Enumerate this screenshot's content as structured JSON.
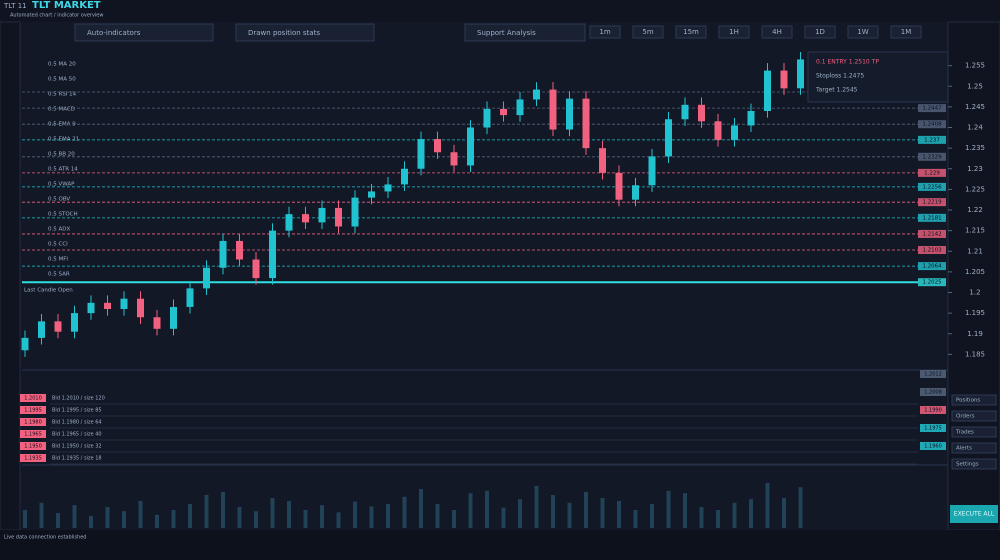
{
  "header": {
    "code": "TLT 11",
    "title": "TLT MARKET",
    "subtitle": "Automated chart / indicator overview",
    "fields": [
      "Auto-indicators",
      "Drawn position stats",
      "Support Analysis"
    ],
    "timeframes": [
      "1m",
      "5m",
      "15m",
      "1H",
      "4H",
      "1D",
      "1W",
      "1M"
    ]
  },
  "sidebar": {
    "labels": [
      "0.5 MA 20",
      "0.5 MA 50",
      "0.5 RSI 14",
      "0.5 MACD",
      "0.5 EMA 9",
      "0.5 EMA 21",
      "0.5 BB 20",
      "0.5 ATR 14",
      "0.5 VWAP",
      "0.5 OBV",
      "0.5 STOCH",
      "0.5 ADX",
      "0.5 CCI",
      "0.5 MFI",
      "0.5 SAR"
    ],
    "note": "Last Candle Open"
  },
  "info_box": {
    "rows": [
      "0.1 ENTRY 1.2510 TP",
      "Stoploss 1.2475",
      "Target 1.2545"
    ]
  },
  "chart_data": {
    "type": "candlestick",
    "up_color": "#22c3d0",
    "down_color": "#f2617f",
    "candles": [
      [
        1.186,
        1.1908,
        1.1844,
        1.189
      ],
      [
        1.189,
        1.1948,
        1.1874,
        1.193
      ],
      [
        1.193,
        1.1948,
        1.1889,
        1.1905
      ],
      [
        1.1905,
        1.1968,
        1.1889,
        1.195
      ],
      [
        1.195,
        1.1993,
        1.1934,
        1.1975
      ],
      [
        1.1975,
        1.1993,
        1.1944,
        1.196
      ],
      [
        1.196,
        1.2003,
        1.1944,
        1.1985
      ],
      [
        1.1985,
        1.2003,
        1.1924,
        1.194
      ],
      [
        1.194,
        1.1958,
        1.1896,
        1.1912
      ],
      [
        1.1912,
        1.1983,
        1.1896,
        1.1965
      ],
      [
        1.1965,
        1.2028,
        1.1949,
        1.201
      ],
      [
        1.201,
        1.2078,
        1.1994,
        1.206
      ],
      [
        1.206,
        1.2143,
        1.2044,
        1.2125
      ],
      [
        1.2125,
        1.2143,
        1.2064,
        1.208
      ],
      [
        1.208,
        1.2098,
        1.2019,
        1.2035
      ],
      [
        1.2035,
        1.2168,
        1.2019,
        1.215
      ],
      [
        1.215,
        1.2208,
        1.2134,
        1.219
      ],
      [
        1.219,
        1.2208,
        1.2154,
        1.217
      ],
      [
        1.217,
        1.2223,
        1.2154,
        1.2205
      ],
      [
        1.2205,
        1.2223,
        1.2144,
        1.216
      ],
      [
        1.216,
        1.2248,
        1.2144,
        1.223
      ],
      [
        1.223,
        1.2263,
        1.2214,
        1.2245
      ],
      [
        1.2245,
        1.228,
        1.2229,
        1.2262
      ],
      [
        1.2262,
        1.2318,
        1.2246,
        1.23
      ],
      [
        1.23,
        1.239,
        1.2284,
        1.2372
      ],
      [
        1.2372,
        1.239,
        1.2324,
        1.234
      ],
      [
        1.234,
        1.2358,
        1.2292,
        1.2308
      ],
      [
        1.2308,
        1.2418,
        1.2292,
        1.24
      ],
      [
        1.24,
        1.2463,
        1.2384,
        1.2445
      ],
      [
        1.2445,
        1.2463,
        1.2414,
        1.243
      ],
      [
        1.243,
        1.2486,
        1.2414,
        1.2468
      ],
      [
        1.2468,
        1.251,
        1.2452,
        1.2492
      ],
      [
        1.2492,
        1.251,
        1.2379,
        1.2395
      ],
      [
        1.2395,
        1.2488,
        1.2379,
        1.247
      ],
      [
        1.247,
        1.2488,
        1.2334,
        1.235
      ],
      [
        1.235,
        1.2368,
        1.2274,
        1.229
      ],
      [
        1.229,
        1.2308,
        1.2209,
        1.2225
      ],
      [
        1.2225,
        1.2278,
        1.2209,
        1.226
      ],
      [
        1.226,
        1.2348,
        1.2244,
        1.233
      ],
      [
        1.233,
        1.2438,
        1.2314,
        1.242
      ],
      [
        1.242,
        1.2473,
        1.2404,
        1.2455
      ],
      [
        1.2455,
        1.2473,
        1.2399,
        1.2415
      ],
      [
        1.2415,
        1.2433,
        1.2354,
        1.237
      ],
      [
        1.237,
        1.2423,
        1.2354,
        1.2405
      ],
      [
        1.2405,
        1.2458,
        1.2389,
        1.244
      ],
      [
        1.244,
        1.2556,
        1.2424,
        1.2538
      ],
      [
        1.2538,
        1.2556,
        1.2479,
        1.2495
      ],
      [
        1.2495,
        1.2583,
        1.2479,
        1.2565
      ]
    ],
    "volumes": [
      30,
      42,
      25,
      38,
      20,
      35,
      28,
      45,
      22,
      30,
      40,
      55,
      60,
      35,
      28,
      50,
      45,
      30,
      38,
      26,
      44,
      36,
      40,
      52,
      65,
      40,
      30,
      58,
      62,
      34,
      48,
      70,
      55,
      42,
      60,
      50,
      45,
      30,
      40,
      62,
      58,
      35,
      30,
      42,
      48,
      75,
      50,
      68
    ],
    "vlim": [
      0,
      100
    ],
    "ylim": [
      1.18,
      1.26
    ],
    "yticks": [
      1.185,
      1.19,
      1.195,
      1.2,
      1.205,
      1.21,
      1.215,
      1.22,
      1.225,
      1.23,
      1.235,
      1.24,
      1.245,
      1.25,
      1.255
    ],
    "levels": [
      {
        "value": 1.2486,
        "color": "#56657f"
      },
      {
        "value": 1.2447,
        "color": "#56657f"
      },
      {
        "value": 1.2408,
        "color": "#56657f"
      },
      {
        "value": 1.237,
        "color": "#22c3d0"
      },
      {
        "value": 1.2329,
        "color": "#56657f"
      },
      {
        "value": 1.229,
        "color": "#f2617f"
      },
      {
        "value": 1.2256,
        "color": "#22c3d0"
      },
      {
        "value": 1.2219,
        "color": "#f2617f"
      },
      {
        "value": 1.2181,
        "color": "#22c3d0"
      },
      {
        "value": 1.2142,
        "color": "#f2617f"
      },
      {
        "value": 1.2103,
        "color": "#f2617f"
      },
      {
        "value": 1.2064,
        "color": "#22c3d0"
      },
      {
        "value": 1.2025,
        "color": "#2ee0e0"
      }
    ]
  },
  "order_panel": {
    "badges": [
      "1.2010",
      "1.1995",
      "1.1980",
      "1.1965",
      "1.1950",
      "1.1935"
    ],
    "rows": [
      "Bid 1.2010 / size 120",
      "Bid 1.1995 / size 85",
      "Bid 1.1980 / size 64",
      "Bid 1.1965 / size 40",
      "Bid 1.1950 / size 32",
      "Bid 1.1935 / size 18"
    ],
    "right_badges": [
      "1.2012",
      "1.2008",
      "1.1990",
      "1.1975",
      "1.1960"
    ]
  },
  "right_panel": {
    "items": [
      "Positions",
      "Orders",
      "Trades",
      "Alerts",
      "Settings"
    ]
  },
  "footer": {
    "status": "Live data connection established",
    "button": "EXECUTE ALL"
  }
}
